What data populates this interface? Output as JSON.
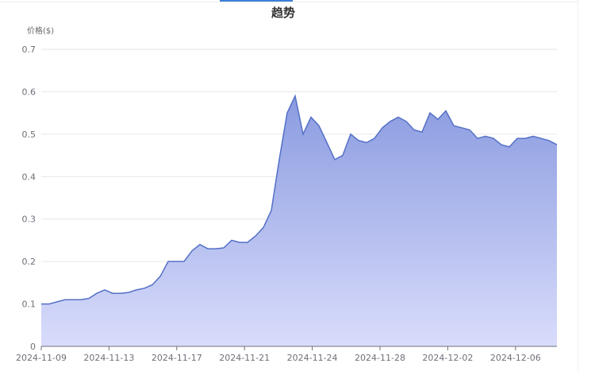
{
  "chart_data": {
    "type": "area",
    "title": "趋势",
    "ylabel": "价格($)",
    "xlabel": "",
    "ylim": [
      0,
      0.7
    ],
    "y_ticks": [
      0,
      0.1,
      0.2,
      0.3,
      0.4,
      0.5,
      0.6,
      0.7
    ],
    "y_tick_labels": [
      "0",
      "0.1",
      "0.2",
      "0.3",
      "0.4",
      "0.5",
      "0.6",
      "0.7"
    ],
    "x_tick_labels": [
      "2024-11-09",
      "2024-11-13",
      "2024-11-17",
      "2024-11-21",
      "2024-11-24",
      "2024-11-28",
      "2024-12-02",
      "2024-12-06"
    ],
    "grid": true,
    "colors": {
      "line": "#5470c6",
      "fill_top": "#8a9be0",
      "fill_bottom": "#d9dcfb"
    },
    "values": [
      0.1,
      0.1,
      0.105,
      0.11,
      0.11,
      0.11,
      0.113,
      0.125,
      0.133,
      0.125,
      0.125,
      0.127,
      0.133,
      0.137,
      0.145,
      0.165,
      0.2,
      0.2,
      0.2,
      0.225,
      0.24,
      0.23,
      0.23,
      0.232,
      0.25,
      0.245,
      0.245,
      0.26,
      0.28,
      0.32,
      0.44,
      0.55,
      0.59,
      0.5,
      0.54,
      0.52,
      0.48,
      0.44,
      0.45,
      0.5,
      0.485,
      0.48,
      0.49,
      0.515,
      0.53,
      0.54,
      0.53,
      0.51,
      0.505,
      0.55,
      0.535,
      0.555,
      0.52,
      0.515,
      0.51,
      0.49,
      0.495,
      0.49,
      0.475,
      0.47,
      0.49,
      0.49,
      0.495,
      0.49,
      0.485,
      0.475
    ]
  }
}
